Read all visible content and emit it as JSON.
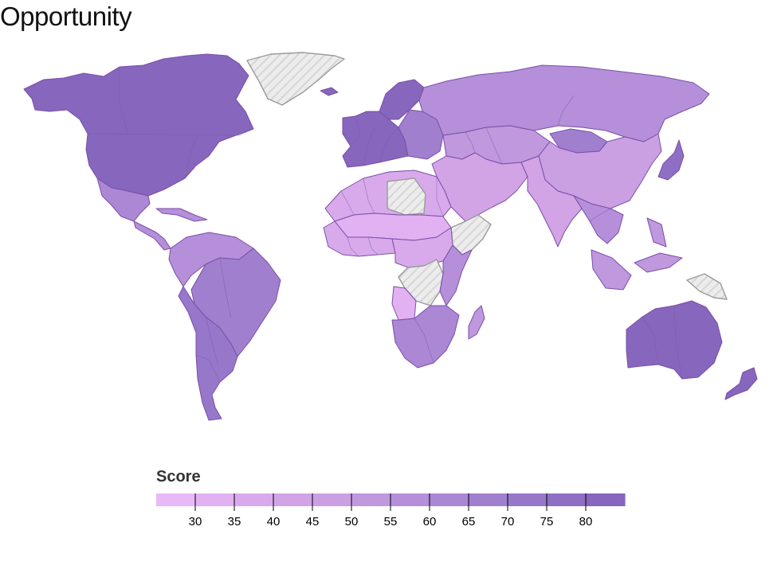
{
  "title": "Opportunity",
  "legend": {
    "title": "Score",
    "ticks": [
      "30",
      "35",
      "40",
      "45",
      "50",
      "55",
      "60",
      "65",
      "70",
      "75",
      "80"
    ],
    "colors": [
      "#e8b9f7",
      "#e1b1f1",
      "#d9aaeb",
      "#d2a3e5",
      "#caa0e3",
      "#bf98de",
      "#b58fd9",
      "#ab87d4",
      "#a17fcf",
      "#9777ca",
      "#8e6fc3",
      "#8766bd"
    ]
  },
  "colors": {
    "no_data_fill": "#ececec",
    "no_data_hatch": "#d8d8d8",
    "border": "#7a4fa8",
    "outline": "#e6e1ec"
  },
  "regions": [
    {
      "name": "North America",
      "score": 80
    },
    {
      "name": "Mexico",
      "score": 62
    },
    {
      "name": "Central America",
      "score": 58
    },
    {
      "name": "Caribbean",
      "score": 55
    },
    {
      "name": "South America North",
      "score": 58
    },
    {
      "name": "Brazil",
      "score": 66
    },
    {
      "name": "Southern Cone",
      "score": 74
    },
    {
      "name": "Greenland",
      "score": null
    },
    {
      "name": "Iceland",
      "score": 80
    },
    {
      "name": "Europe West",
      "score": 80
    },
    {
      "name": "Scandinavia",
      "score": 82
    },
    {
      "name": "Europe East",
      "score": 68
    },
    {
      "name": "Russia",
      "score": 55
    },
    {
      "name": "Central Asia",
      "score": 52
    },
    {
      "name": "Mongolia",
      "score": 65
    },
    {
      "name": "China",
      "score": 45
    },
    {
      "name": "Japan Korea",
      "score": 78
    },
    {
      "name": "Middle East",
      "score": 40
    },
    {
      "name": "India South Asia",
      "score": 42
    },
    {
      "name": "Southeast Asia",
      "score": 55
    },
    {
      "name": "Indonesia Philippines",
      "score": 50
    },
    {
      "name": "North Africa",
      "score": 38
    },
    {
      "name": "Libya",
      "score": null
    },
    {
      "name": "Sahel",
      "score": 30
    },
    {
      "name": "West Africa",
      "score": 35
    },
    {
      "name": "Horn of Africa",
      "score": null
    },
    {
      "name": "Central Africa",
      "score": 38
    },
    {
      "name": "DR Congo",
      "score": null
    },
    {
      "name": "East Africa",
      "score": 55
    },
    {
      "name": "Angola",
      "score": 30
    },
    {
      "name": "Southern Africa",
      "score": 62
    },
    {
      "name": "Madagascar",
      "score": 50
    },
    {
      "name": "Australia",
      "score": 80
    },
    {
      "name": "New Zealand",
      "score": 82
    },
    {
      "name": "Papua New Guinea",
      "score": null
    }
  ]
}
